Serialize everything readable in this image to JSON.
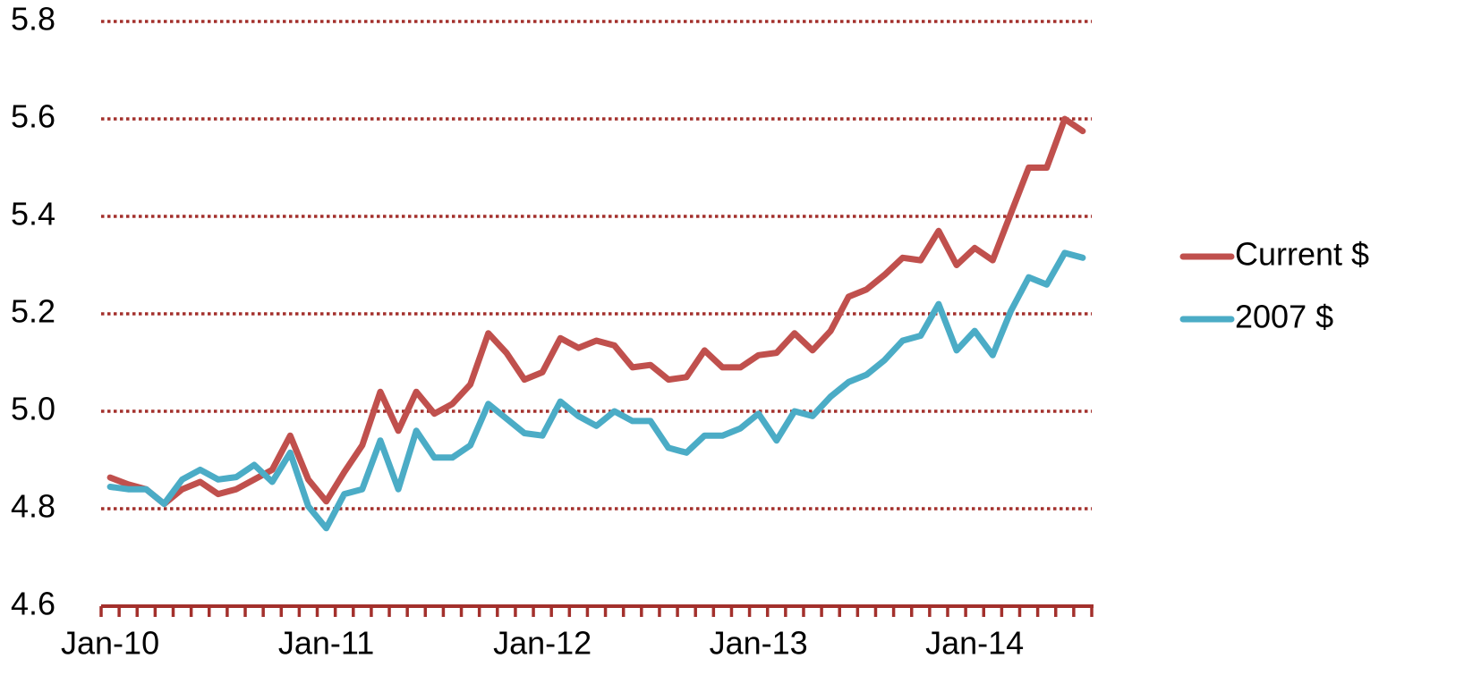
{
  "chart_data": {
    "type": "line",
    "categories": [
      "Jan-10",
      null,
      null,
      null,
      null,
      null,
      null,
      null,
      null,
      null,
      null,
      null,
      "Jan-11",
      null,
      null,
      null,
      null,
      null,
      null,
      null,
      null,
      null,
      null,
      null,
      "Jan-12",
      null,
      null,
      null,
      null,
      null,
      null,
      null,
      null,
      null,
      null,
      null,
      "Jan-13",
      null,
      null,
      null,
      null,
      null,
      null,
      null,
      null,
      null,
      null,
      null,
      "Jan-14",
      null,
      null,
      null,
      null,
      null,
      null
    ],
    "series": [
      {
        "name": "Current $",
        "color": "#c0504d",
        "values": [
          4.864,
          4.85,
          4.84,
          4.81,
          4.84,
          4.855,
          4.83,
          4.84,
          4.86,
          4.88,
          4.95,
          4.86,
          4.815,
          4.875,
          4.93,
          5.04,
          4.96,
          5.04,
          4.995,
          5.015,
          5.055,
          5.16,
          5.12,
          5.065,
          5.08,
          5.15,
          5.13,
          5.145,
          5.135,
          5.09,
          5.095,
          5.065,
          5.07,
          5.125,
          5.09,
          5.09,
          5.115,
          5.12,
          5.16,
          5.125,
          5.165,
          5.235,
          5.25,
          5.28,
          5.315,
          5.31,
          5.37,
          5.3,
          5.335,
          5.31,
          5.405,
          5.5,
          5.5,
          5.6,
          5.575
        ]
      },
      {
        "name": "2007 $",
        "color": "#4bacc6",
        "values": [
          4.845,
          4.84,
          4.84,
          4.81,
          4.86,
          4.88,
          4.86,
          4.865,
          4.89,
          4.855,
          4.915,
          4.805,
          4.76,
          4.83,
          4.84,
          4.94,
          4.84,
          4.96,
          4.905,
          4.905,
          4.93,
          5.015,
          4.985,
          4.955,
          4.95,
          5.02,
          4.99,
          4.97,
          5.0,
          4.98,
          4.98,
          4.925,
          4.915,
          4.95,
          4.95,
          4.965,
          4.995,
          4.94,
          5.0,
          4.99,
          5.03,
          5.06,
          5.075,
          5.105,
          5.145,
          5.155,
          5.22,
          5.125,
          5.165,
          5.115,
          5.205,
          5.275,
          5.26,
          5.325,
          5.315
        ]
      }
    ],
    "ylim": [
      4.6,
      5.8
    ],
    "yticks": [
      4.6,
      4.8,
      {
        "value": 5,
        "label": "5.0"
      },
      5.2,
      5.4,
      5.6,
      5.8
    ],
    "grid": true,
    "legend": "right"
  }
}
